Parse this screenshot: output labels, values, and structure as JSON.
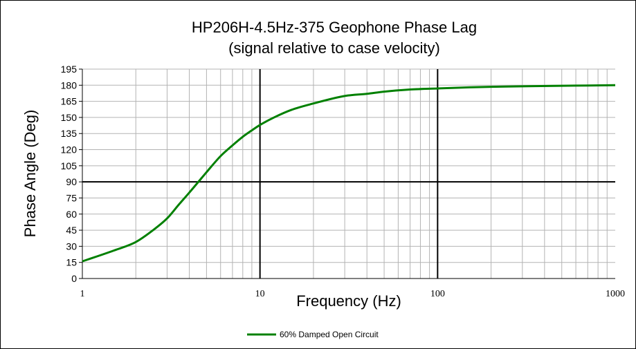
{
  "chart_data": {
    "type": "line",
    "title": "HP206H-4.5Hz-375 Geophone Phase Lag",
    "subtitle": "(signal relative to case velocity)",
    "xlabel": "Frequency (Hz)",
    "ylabel": "Phase Angle (Deg)",
    "xscale": "log",
    "xlim": [
      1,
      1000
    ],
    "ylim": [
      0,
      195
    ],
    "xticks": [
      1,
      10,
      100,
      1000
    ],
    "xtick_labels": [
      "1",
      "10",
      "100",
      "1000"
    ],
    "yticks": [
      0,
      15,
      30,
      45,
      60,
      75,
      90,
      105,
      120,
      135,
      150,
      165,
      180,
      195
    ],
    "ytick_labels": [
      "0",
      "15",
      "30",
      "45",
      "60",
      "75",
      "90",
      "105",
      "120",
      "135",
      "150",
      "165",
      "180",
      "195"
    ],
    "grid": true,
    "legend": "bottom-center",
    "series": [
      {
        "name": "60% Damped Open Circuit",
        "color": "#008000",
        "x": [
          1,
          1.5,
          2,
          2.5,
          3,
          3.5,
          4,
          4.5,
          5,
          6,
          7,
          8,
          9,
          10,
          12,
          15,
          20,
          30,
          40,
          50,
          70,
          100,
          150,
          200,
          300,
          500,
          700,
          1000
        ],
        "y": [
          16,
          26,
          34,
          45,
          56,
          69,
          80,
          90,
          99,
          114,
          124,
          132,
          138,
          143,
          150,
          157,
          163,
          170,
          172,
          174,
          176,
          177,
          178,
          178.5,
          179,
          179.5,
          179.7,
          180
        ]
      }
    ]
  }
}
